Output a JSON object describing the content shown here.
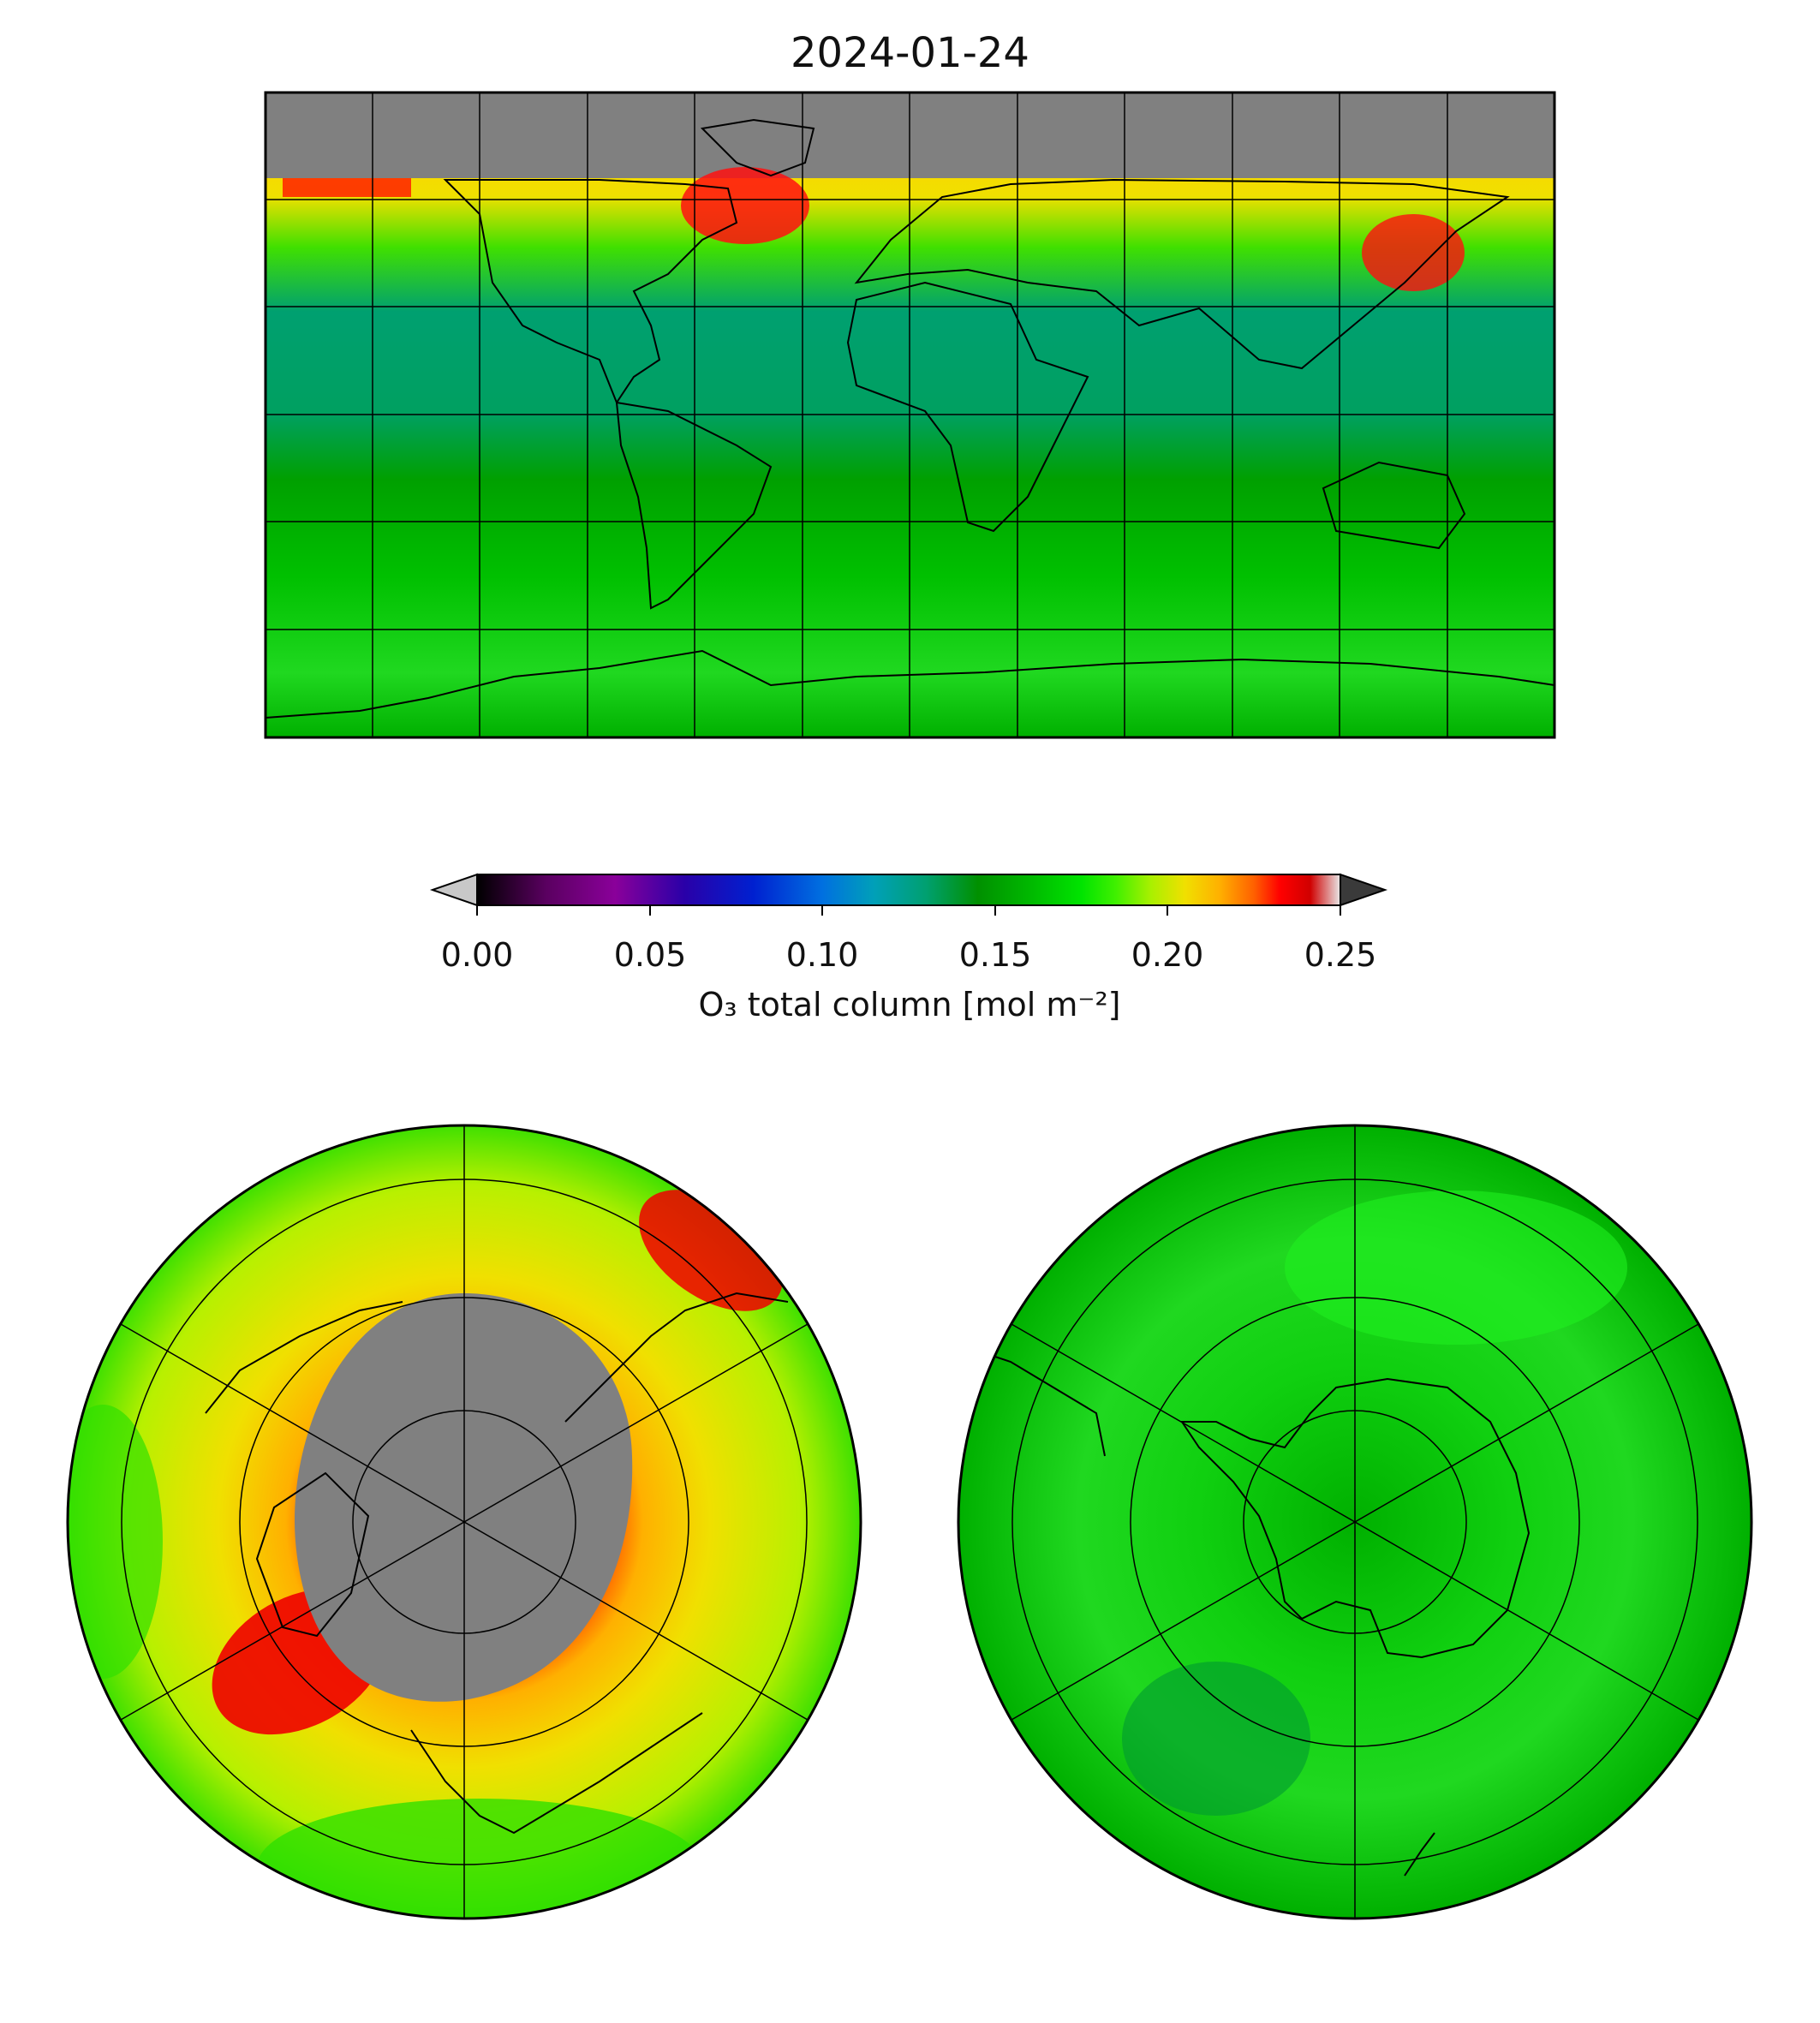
{
  "title": "2024-01-24",
  "colorbar": {
    "label": "O₃ total column [mol m⁻²]",
    "ticks": [
      "0.00",
      "0.05",
      "0.10",
      "0.15",
      "0.20",
      "0.25"
    ],
    "vmin": 0.0,
    "vmax": 0.25,
    "extend": "both",
    "under_color": "#c8c8c8",
    "over_color": "#3a3a3a",
    "colormap_stops": [
      [
        0.0,
        "#000000"
      ],
      [
        0.08,
        "#5a0060"
      ],
      [
        0.16,
        "#8a009a"
      ],
      [
        0.24,
        "#2a00a8"
      ],
      [
        0.32,
        "#0020d0"
      ],
      [
        0.4,
        "#0070e0"
      ],
      [
        0.46,
        "#00a0b8"
      ],
      [
        0.52,
        "#00a070"
      ],
      [
        0.58,
        "#009000"
      ],
      [
        0.64,
        "#00b800"
      ],
      [
        0.7,
        "#00e400"
      ],
      [
        0.74,
        "#40f000"
      ],
      [
        0.78,
        "#a8f000"
      ],
      [
        0.82,
        "#f0e000"
      ],
      [
        0.86,
        "#ffb000"
      ],
      [
        0.9,
        "#ff6000"
      ],
      [
        0.93,
        "#ff0000"
      ],
      [
        0.965,
        "#d00000"
      ],
      [
        1.0,
        "#e8e8e8"
      ]
    ]
  },
  "panels": {
    "global": {
      "projection": "plate-carree",
      "no_data_color": "#808080"
    },
    "north_polar": {
      "projection": "north-polar-stereographic",
      "no_data_color": "#808080"
    },
    "south_polar": {
      "projection": "south-polar-stereographic",
      "no_data_color": "#808080"
    }
  }
}
